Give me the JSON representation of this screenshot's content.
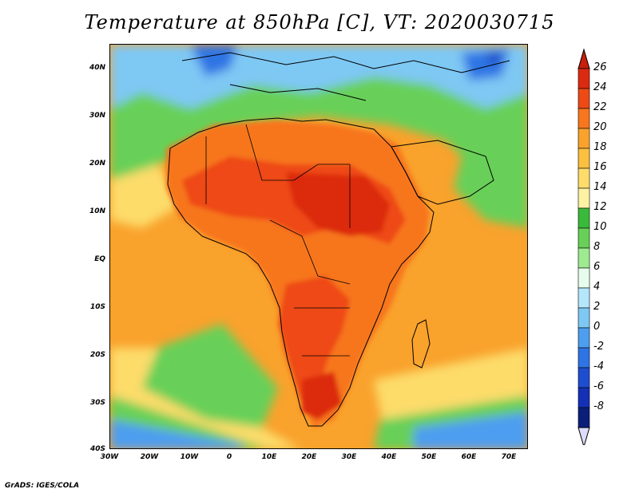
{
  "title": "Temperature at 850hPa [C], VT: 2020030715",
  "credit": "GrADS: IGES/COLA",
  "axes": {
    "lat_labels": [
      "40N",
      "30N",
      "20N",
      "10N",
      "EQ",
      "10S",
      "20S",
      "30S",
      "40S"
    ],
    "lon_labels": [
      "30W",
      "20W",
      "10W",
      "0",
      "10E",
      "20E",
      "30E",
      "40E",
      "50E",
      "60E",
      "70E"
    ]
  },
  "colorbar": {
    "labels": [
      "26",
      "24",
      "22",
      "20",
      "18",
      "16",
      "14",
      "12",
      "10",
      "8",
      "6",
      "4",
      "2",
      "0",
      "-2",
      "-4",
      "-6",
      "-8"
    ],
    "colors": [
      "#dc2a10",
      "#ee4a16",
      "#f7761e",
      "#f9a22c",
      "#fbc040",
      "#fddc6a",
      "#fdf2a4",
      "#3aba3a",
      "#68d058",
      "#9eea90",
      "#e6fcec",
      "#b4e6fc",
      "#7ec8f4",
      "#4e9ef0",
      "#2e74e4",
      "#1e4ed0",
      "#1430b6",
      "#0a1e7a"
    ],
    "top_arrow_color": "#c81e0a",
    "bottom_arrow_color": "#dcdcfc"
  },
  "colors": {
    "ocean_warm": "#f9a22c",
    "land_hot": "#dc2a10",
    "cold": "#2e74e4",
    "green": "#68d058"
  }
}
